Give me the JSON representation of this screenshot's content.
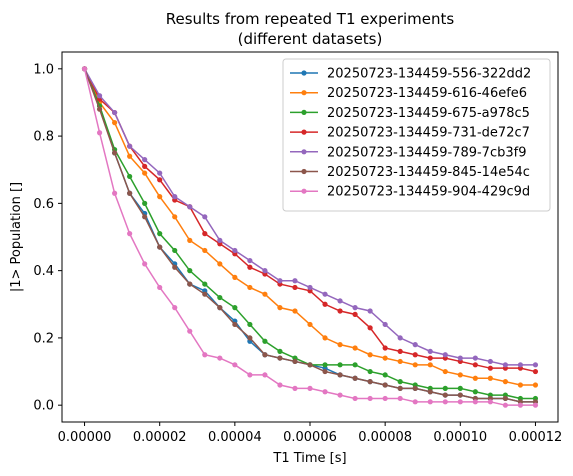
{
  "chart_data": {
    "type": "line",
    "title_line1": "Results from repeated T1 experiments",
    "title_line2": "(different datasets)",
    "xlabel": "T1 Time [s]",
    "ylabel": "|1> Population []",
    "xlim": [
      -6e-06,
      0.000126
    ],
    "ylim": [
      -0.05,
      1.05
    ],
    "xticks": [
      0,
      2e-05,
      4e-05,
      6e-05,
      8e-05,
      0.0001,
      0.00012
    ],
    "xtick_labels": [
      "0.00000",
      "0.00002",
      "0.00004",
      "0.00006",
      "0.00008",
      "0.00010",
      "0.00012"
    ],
    "yticks": [
      0.0,
      0.2,
      0.4,
      0.6,
      0.8,
      1.0
    ],
    "ytick_labels": [
      "0.0",
      "0.2",
      "0.4",
      "0.6",
      "0.8",
      "1.0"
    ],
    "grid": false,
    "legend_position": "top-right",
    "x": [
      0,
      4e-06,
      8e-06,
      1.2e-05,
      1.6e-05,
      2e-05,
      2.4e-05,
      2.8e-05,
      3.2e-05,
      3.6e-05,
      4e-05,
      4.4e-05,
      4.8e-05,
      5.2e-05,
      5.6e-05,
      6e-05,
      6.4e-05,
      6.8e-05,
      7.2e-05,
      7.6e-05,
      8e-05,
      8.4e-05,
      8.8e-05,
      9.2e-05,
      9.6e-05,
      0.0001,
      0.000104,
      0.000108,
      0.000112,
      0.000116,
      0.00012
    ],
    "series": [
      {
        "name": "20250723-134459-556-322dd2",
        "color": "#1f77b4",
        "values": [
          1.0,
          0.89,
          0.75,
          0.63,
          0.57,
          0.47,
          0.42,
          0.36,
          0.34,
          0.29,
          0.25,
          0.19,
          0.15,
          0.14,
          0.13,
          0.12,
          0.11,
          0.09,
          0.08,
          0.07,
          0.06,
          0.05,
          0.05,
          0.04,
          0.03,
          0.03,
          0.02,
          0.02,
          0.02,
          0.01,
          0.01
        ]
      },
      {
        "name": "20250723-134459-616-46efe6",
        "color": "#ff7f0e",
        "values": [
          1.0,
          0.9,
          0.84,
          0.74,
          0.69,
          0.62,
          0.56,
          0.49,
          0.46,
          0.42,
          0.38,
          0.35,
          0.33,
          0.29,
          0.28,
          0.24,
          0.2,
          0.18,
          0.17,
          0.15,
          0.14,
          0.13,
          0.12,
          0.12,
          0.1,
          0.09,
          0.08,
          0.08,
          0.07,
          0.06,
          0.06
        ]
      },
      {
        "name": "20250723-134459-675-a978c5",
        "color": "#2ca02c",
        "values": [
          1.0,
          0.89,
          0.76,
          0.68,
          0.6,
          0.51,
          0.46,
          0.4,
          0.36,
          0.32,
          0.29,
          0.24,
          0.19,
          0.16,
          0.14,
          0.12,
          0.12,
          0.12,
          0.12,
          0.1,
          0.09,
          0.07,
          0.06,
          0.05,
          0.05,
          0.05,
          0.04,
          0.03,
          0.03,
          0.02,
          0.02
        ]
      },
      {
        "name": "20250723-134459-731-de72c7",
        "color": "#d62728",
        "values": [
          1.0,
          0.91,
          0.87,
          0.77,
          0.71,
          0.67,
          0.61,
          0.59,
          0.51,
          0.48,
          0.45,
          0.41,
          0.39,
          0.36,
          0.35,
          0.34,
          0.3,
          0.28,
          0.27,
          0.23,
          0.17,
          0.16,
          0.15,
          0.14,
          0.14,
          0.13,
          0.12,
          0.11,
          0.11,
          0.11,
          0.1
        ]
      },
      {
        "name": "20250723-134459-789-7cb3f9",
        "color": "#9467bd",
        "values": [
          1.0,
          0.92,
          0.87,
          0.77,
          0.73,
          0.69,
          0.62,
          0.59,
          0.56,
          0.49,
          0.46,
          0.43,
          0.4,
          0.37,
          0.37,
          0.35,
          0.33,
          0.31,
          0.29,
          0.28,
          0.24,
          0.2,
          0.18,
          0.16,
          0.15,
          0.14,
          0.14,
          0.13,
          0.12,
          0.12,
          0.12
        ]
      },
      {
        "name": "20250723-134459-845-14e54c",
        "color": "#8c564b",
        "values": [
          1.0,
          0.88,
          0.75,
          0.63,
          0.56,
          0.47,
          0.41,
          0.36,
          0.33,
          0.29,
          0.24,
          0.2,
          0.15,
          0.14,
          0.13,
          0.12,
          0.1,
          0.09,
          0.08,
          0.07,
          0.06,
          0.05,
          0.05,
          0.04,
          0.03,
          0.03,
          0.02,
          0.02,
          0.02,
          0.01,
          0.01
        ]
      },
      {
        "name": "20250723-134459-904-429c9d",
        "color": "#e377c2",
        "values": [
          1.0,
          0.81,
          0.63,
          0.51,
          0.42,
          0.35,
          0.29,
          0.22,
          0.15,
          0.14,
          0.12,
          0.09,
          0.09,
          0.06,
          0.05,
          0.05,
          0.04,
          0.03,
          0.02,
          0.02,
          0.02,
          0.02,
          0.01,
          0.01,
          0.01,
          0.01,
          0.01,
          0.01,
          0.0,
          0.0,
          0.0
        ]
      }
    ]
  }
}
